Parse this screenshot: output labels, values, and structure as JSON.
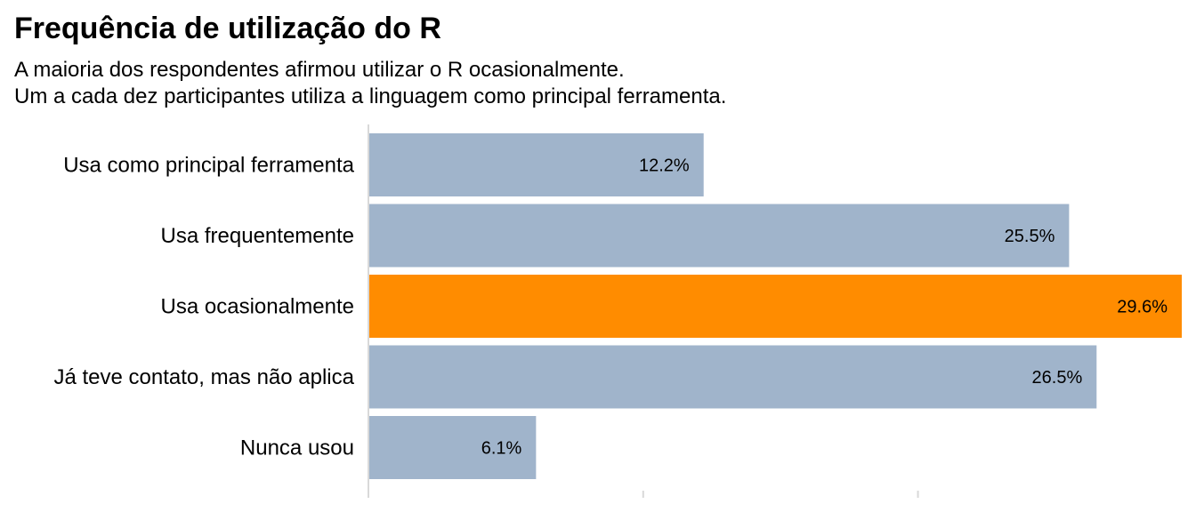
{
  "chart_data": {
    "type": "bar",
    "orientation": "horizontal",
    "title": "Frequência de utilização do R",
    "subtitle": [
      "A maioria dos respondentes afirmou utilizar o R ocasionalmente.",
      "Um a cada dez participantes utiliza a linguagem como principal ferramenta."
    ],
    "xlabel": "",
    "ylabel": "",
    "categories": [
      "Usa como principal ferramenta",
      "Usa frequentemente",
      "Usa ocasionalmente",
      "Já teve contato, mas não aplica",
      "Nunca usou"
    ],
    "values": [
      12.2,
      25.5,
      29.6,
      26.5,
      6.1
    ],
    "value_labels": [
      "12.2%",
      "25.5%",
      "29.6%",
      "26.5%",
      "6.1%"
    ],
    "xlim": [
      0,
      29.6
    ],
    "x_ticks": [
      0,
      10,
      20
    ],
    "highlight_category": "Usa ocasionalmente",
    "colors": {
      "default_bar": "#a0b4cb",
      "highlight_bar": "#ff8c00",
      "axis": "#d9d9d9"
    },
    "grid": false,
    "legend": "none"
  }
}
